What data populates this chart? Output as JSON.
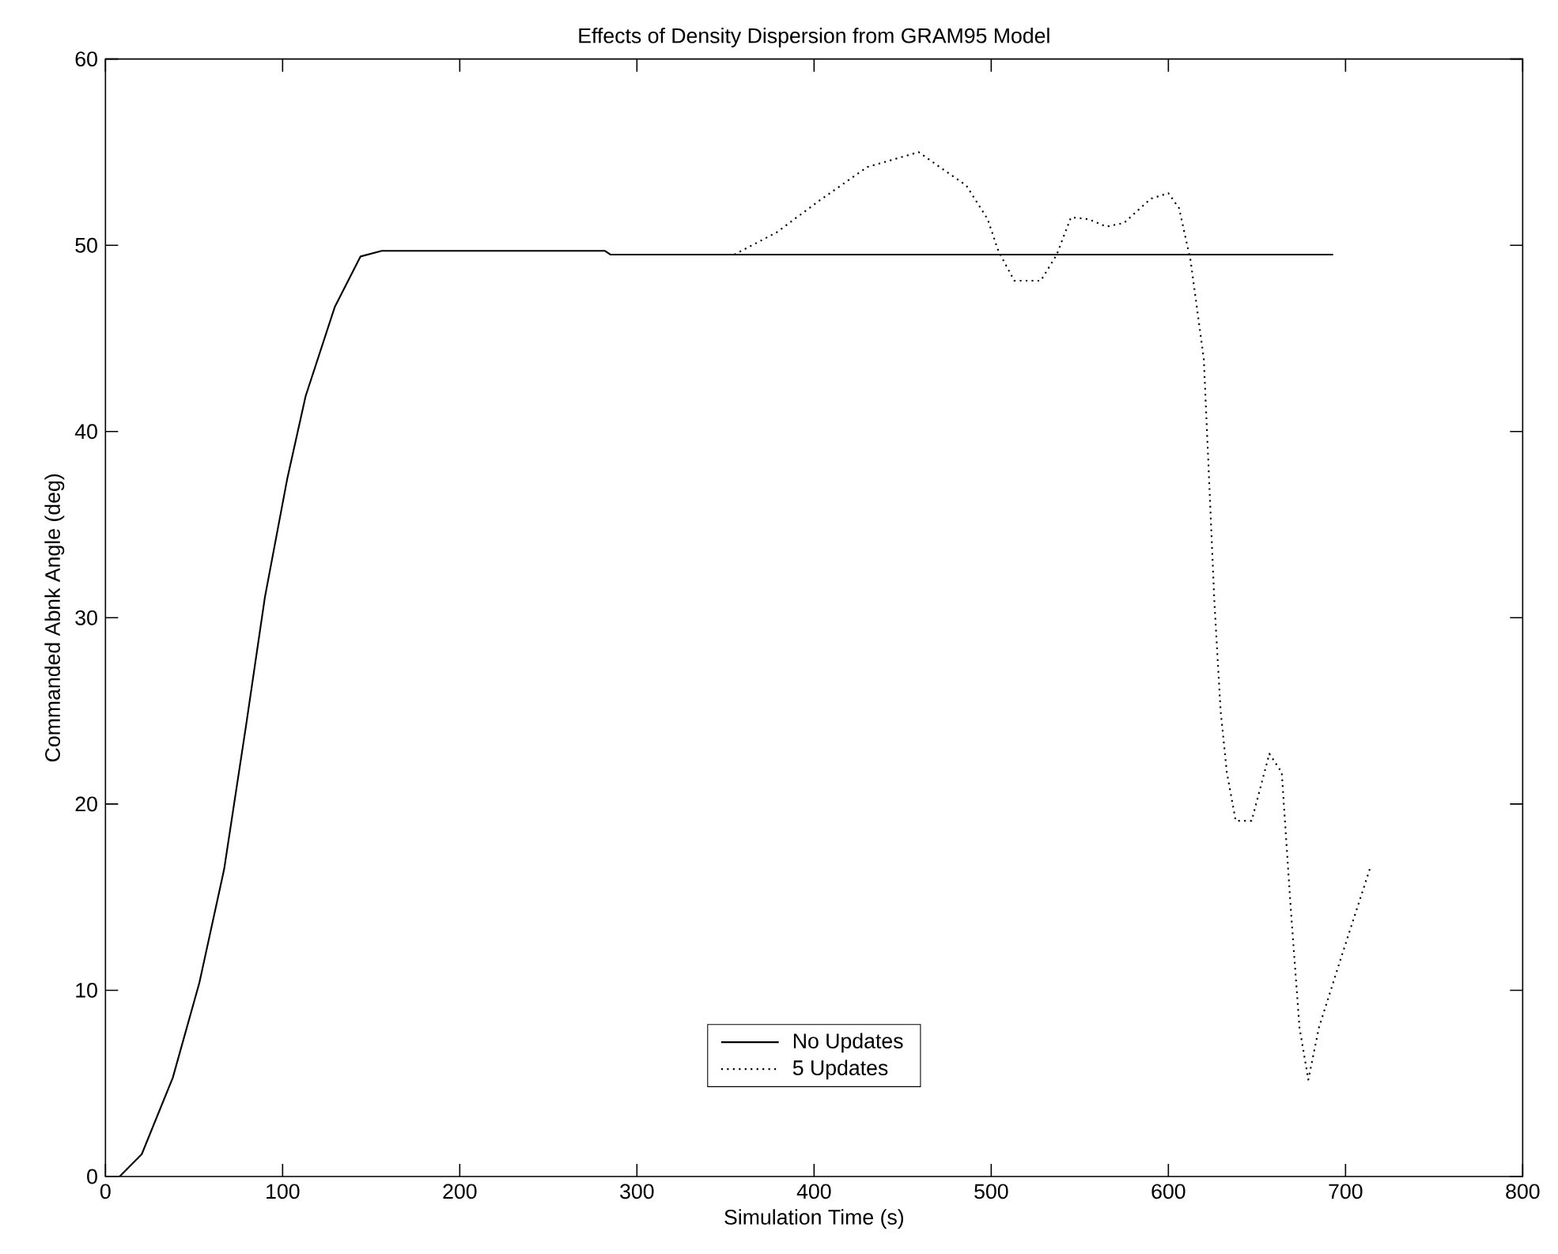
{
  "chart_data": {
    "type": "line",
    "title": "Effects of Density Dispersion from GRAM95 Model",
    "xlabel": "Simulation Time (s)",
    "ylabel": "Commanded Abnk Angle (deg)",
    "xlim": [
      0,
      800
    ],
    "ylim": [
      0,
      60
    ],
    "xticks": [
      0,
      100,
      200,
      300,
      400,
      500,
      600,
      700,
      800
    ],
    "yticks": [
      0,
      10,
      20,
      30,
      40,
      50,
      60
    ],
    "grid": false,
    "legend": "bottom",
    "marker": "none",
    "series": [
      {
        "name": "No Updates",
        "color": "#000000",
        "line_style": "solid",
        "x": [
          0,
          8,
          20.5,
          38,
          53,
          67,
          79.5,
          90,
          102.7,
          113,
          129.5,
          144,
          156,
          282,
          285,
          693
        ],
        "values": [
          0,
          0,
          1.2,
          5.3,
          10.4,
          16.5,
          24.3,
          31.1,
          37.5,
          41.9,
          46.7,
          49.4,
          49.7,
          49.7,
          49.5,
          49.5
        ]
      },
      {
        "name": "5 Updates",
        "color": "#000000",
        "line_style": "dotted",
        "x": [
          355,
          379,
          403,
          430,
          459,
          486,
          498,
          504,
          513,
          528,
          537,
          545,
          555,
          565,
          575,
          590,
          600,
          606,
          612.5,
          620,
          623,
          626,
          629.5,
          633,
          638,
          647,
          657,
          664,
          669,
          674,
          679,
          685,
          698,
          714
        ],
        "values": [
          49.5,
          50.7,
          52.4,
          54.2,
          55.0,
          53.2,
          51.4,
          49.7,
          48.1,
          48.1,
          49.5,
          51.5,
          51.4,
          51.0,
          51.2,
          52.5,
          52.8,
          52.0,
          49.2,
          43.9,
          37.4,
          30.8,
          25.0,
          21.7,
          19.1,
          19.1,
          22.7,
          21.7,
          14.5,
          8.0,
          5.2,
          8.0,
          11.9,
          16.6
        ]
      }
    ]
  }
}
